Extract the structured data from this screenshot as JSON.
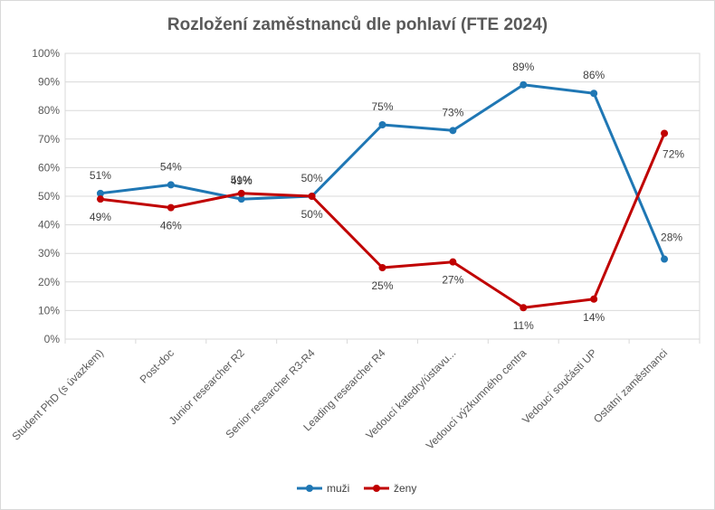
{
  "chart_data": {
    "type": "line",
    "title": "Rozložení zaměstnanců dle pohlaví (FTE 2024)",
    "categories": [
      "Student PhD (s úvazkem)",
      "Post-doc",
      "Junior researcher R2",
      "Senior researcher R3-R4",
      "Leading researcher R4",
      "Vedoucí katedry/ústavu...",
      "Vedoucí výzkumného centra",
      "Vedoucí součásti UP",
      "Ostatní zaměstnanci"
    ],
    "series": [
      {
        "name": "muži",
        "color": "#1f77b4",
        "values": [
          51,
          54,
          49,
          50,
          75,
          73,
          89,
          86,
          28
        ],
        "labels": [
          "51%",
          "54%",
          "49%",
          "50%",
          "75%",
          "73%",
          "89%",
          "86%",
          "28%"
        ]
      },
      {
        "name": "ženy",
        "color": "#c00000",
        "values": [
          49,
          46,
          51,
          50,
          25,
          27,
          11,
          14,
          72
        ],
        "labels": [
          "49%",
          "46%",
          "51%",
          "50%",
          "25%",
          "27%",
          "11%",
          "14%",
          "72%"
        ]
      }
    ],
    "y_ticks": [
      "0%",
      "10%",
      "20%",
      "30%",
      "40%",
      "50%",
      "60%",
      "70%",
      "80%",
      "90%",
      "100%"
    ],
    "ylim": [
      0,
      100
    ],
    "grid": true,
    "legend": "bottom"
  }
}
